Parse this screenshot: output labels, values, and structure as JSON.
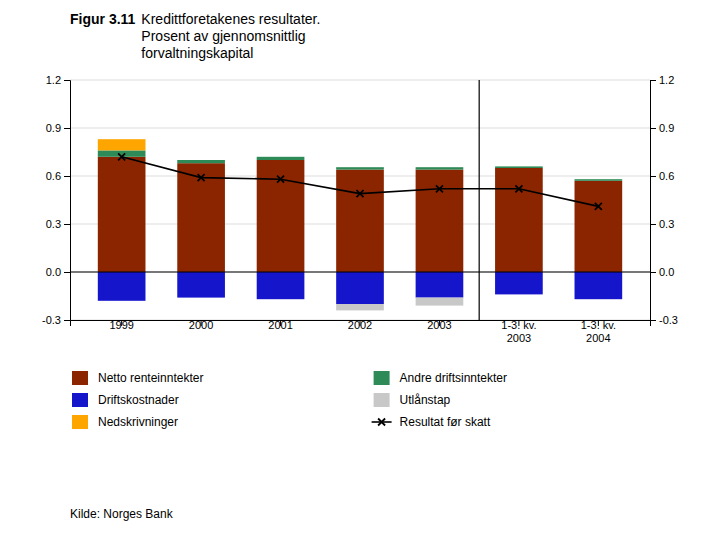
{
  "chart_data": {
    "type": "bar",
    "title": "Figur 3.11",
    "subtitle": "Kredittforetakenes resultater.\nProsent av gjennomsnittlig\nforvaltningskapital",
    "categories": [
      "1999",
      "2000",
      "2001",
      "2002",
      "2003",
      "1-3. kv.\n2003",
      "1-3. kv.\n2004"
    ],
    "series": [
      {
        "name": "Netto renteinntekter",
        "color": "#8B2500",
        "values": [
          0.72,
          0.68,
          0.7,
          0.64,
          0.64,
          0.65,
          0.57
        ]
      },
      {
        "name": "Driftskostnader",
        "color": "#1515CC",
        "values": [
          -0.18,
          -0.16,
          -0.17,
          -0.2,
          -0.16,
          -0.14,
          -0.17
        ]
      },
      {
        "name": "Nedskrivninger",
        "color": "#FFA500",
        "values": [
          0.07,
          0.0,
          0.0,
          0.0,
          0.0,
          0.0,
          0.0
        ]
      },
      {
        "name": "Andre driftsinntekter",
        "color": "#2E8B57",
        "values": [
          0.04,
          0.02,
          0.02,
          0.015,
          0.015,
          0.01,
          0.01
        ]
      },
      {
        "name": "Utlånstap",
        "color": "#C8C8C8",
        "values": [
          0.0,
          0.0,
          0.0,
          -0.04,
          -0.05,
          0.0,
          0.0
        ]
      },
      {
        "name": "Resultat før skatt",
        "color": "#000000",
        "type": "line",
        "marker": "x",
        "values": [
          0.72,
          0.59,
          0.58,
          0.49,
          0.52,
          0.52,
          0.41
        ]
      }
    ],
    "stacked": true,
    "ylim": [
      -0.3,
      1.2
    ],
    "yticks": [
      -0.3,
      {
        "value": 0.0,
        "label": "0.0"
      },
      0.3,
      0.6,
      0.9,
      1.2
    ],
    "y2lim": [
      -0.3,
      1.2
    ],
    "y2ticks": [
      -0.3,
      {
        "value": 0.0,
        "label": "0.0"
      },
      0.3,
      0.6,
      0.9,
      1.2
    ],
    "grid": true,
    "legend": "bottom",
    "source": "Kilde: Norges Bank"
  }
}
